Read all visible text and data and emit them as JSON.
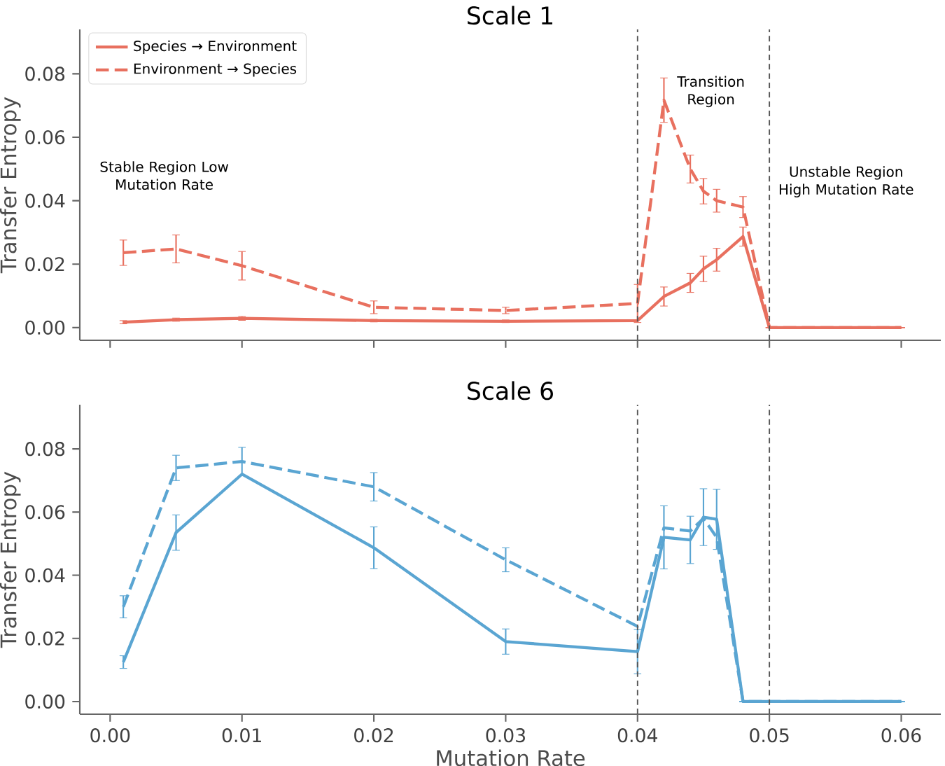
{
  "chart_data": [
    {
      "type": "line",
      "title": "Scale 1",
      "ylabel": "Transfer Entropy",
      "x": [
        0.001,
        0.005,
        0.01,
        0.02,
        0.03,
        0.04,
        0.042,
        0.044,
        0.045,
        0.046,
        0.048,
        0.05,
        0.06
      ],
      "series": [
        {
          "name": "Species → Environment",
          "color": "#e8705f",
          "line_style": "solid",
          "values": [
            0.0017,
            0.0025,
            0.0029,
            0.0022,
            0.002,
            0.0022,
            0.0098,
            0.0141,
            0.0185,
            0.0214,
            0.0287,
            0,
            0
          ],
          "errors": [
            0.0005,
            0.0005,
            0.0006,
            0.0004,
            0.0004,
            null,
            0.003,
            0.003,
            0.004,
            0.0036,
            0.003,
            0,
            0
          ]
        },
        {
          "name": "Environment → Species",
          "color": "#e8705f",
          "line_style": "dashed",
          "values": [
            0.0236,
            0.0248,
            0.0195,
            0.0064,
            0.0054,
            0.0076,
            0.0717,
            0.05,
            0.043,
            0.04,
            0.038,
            0,
            0
          ],
          "errors": [
            0.004,
            0.0044,
            0.0045,
            0.002,
            0.001,
            0.006,
            0.007,
            0.0044,
            0.004,
            0.0036,
            0.0033,
            0,
            0
          ]
        }
      ],
      "xlim": [
        -0.0023,
        0.063
      ],
      "ylim": [
        -0.004,
        0.094
      ],
      "xticks": [
        0,
        0.01,
        0.02,
        0.03,
        0.04,
        0.05,
        0.06
      ],
      "yticks": [
        {
          "value": 0,
          "label": "0.00"
        },
        0.02,
        0.04,
        0.06,
        0.08
      ],
      "tick_labels": "y",
      "legend": "top left",
      "ref_lines": [
        {
          "axis": "x",
          "value": 0.04,
          "color": "#555555",
          "line_style": "dashed"
        },
        {
          "axis": "x",
          "value": 0.05,
          "color": "#555555",
          "line_style": "dashed"
        }
      ],
      "annotations": [
        "Stable Region Low Mutation Rate",
        "Transition Region",
        "Unstable Region High Mutation Rate"
      ]
    },
    {
      "type": "line",
      "title": "Scale 6",
      "xlabel": "Mutation Rate",
      "ylabel": "Transfer Entropy",
      "x": [
        0.001,
        0.005,
        0.01,
        0.02,
        0.03,
        0.04,
        0.042,
        0.044,
        0.045,
        0.046,
        0.048,
        0.05,
        0.06
      ],
      "series": [
        {
          "color": "#5aa5d2",
          "line_style": "solid",
          "values": [
            0.0125,
            0.0535,
            0.072,
            0.0487,
            0.019,
            0.0158,
            0.052,
            0.0512,
            0.0584,
            0.0577,
            0,
            0,
            0
          ],
          "errors": [
            0.002,
            0.0056,
            null,
            0.0066,
            0.004,
            0.007,
            0.01,
            0.0075,
            0.009,
            0.0095,
            0,
            0,
            0
          ]
        },
        {
          "color": "#5aa5d2",
          "line_style": "dashed",
          "values": [
            0.03,
            0.074,
            0.076,
            0.068,
            0.0449,
            0.0238,
            0.055,
            0.054,
            0.058,
            0.052,
            0,
            0,
            0
          ],
          "errors": [
            0.0035,
            0.004,
            0.0045,
            0.0045,
            0.0038,
            null,
            null,
            null,
            null,
            null,
            0,
            0,
            0
          ]
        }
      ],
      "xlim": [
        -0.0023,
        0.063
      ],
      "ylim": [
        -0.004,
        0.094
      ],
      "xticks": [
        {
          "value": 0,
          "label": "0.00"
        },
        0.01,
        0.02,
        0.03,
        0.04,
        0.05,
        0.06
      ],
      "yticks": [
        {
          "value": 0,
          "label": "0.00"
        },
        0.02,
        0.04,
        0.06,
        0.08
      ],
      "ref_lines": [
        {
          "axis": "x",
          "value": 0.04,
          "color": "#555555",
          "line_style": "dashed"
        },
        {
          "axis": "x",
          "value": 0.05,
          "color": "#555555",
          "line_style": "dashed"
        }
      ]
    }
  ]
}
